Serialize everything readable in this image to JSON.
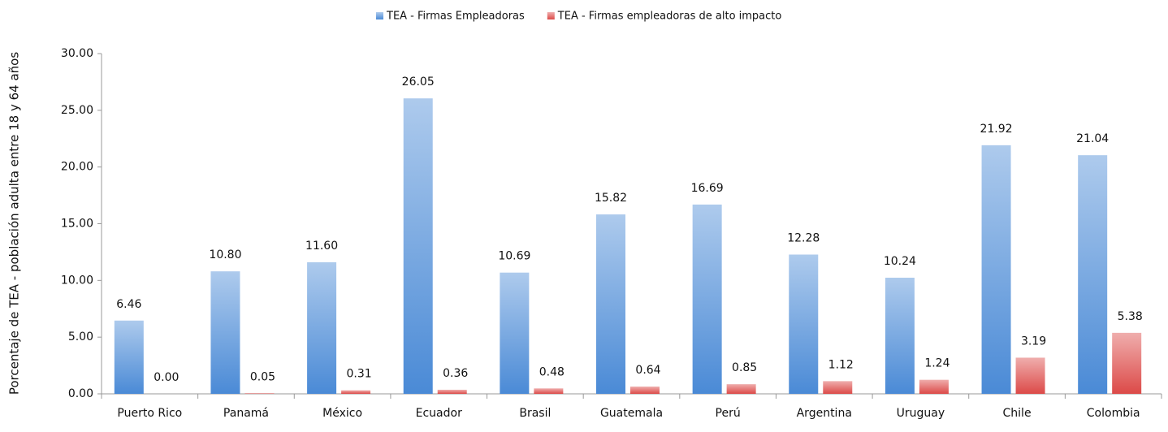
{
  "chart_data": {
    "type": "bar",
    "y_label": "Porcentaje de TEA - población adulta entre 18 y 64 años",
    "categories": [
      "Puerto Rico",
      "Panamá",
      "México",
      "Ecuador",
      "Brasil",
      "Guatemala",
      "Perú",
      "Argentina",
      "Uruguay",
      "Chile",
      "Colombia"
    ],
    "series": [
      {
        "name": "TEA - Firmas Empleadoras",
        "color": "#4a8ad6",
        "values": [
          6.46,
          10.8,
          11.6,
          26.05,
          10.69,
          15.82,
          16.69,
          12.28,
          10.24,
          21.92,
          21.04
        ],
        "value_labels": [
          "6.46",
          "10.80",
          "11.60",
          "26.05",
          "10.69",
          "15.82",
          "16.69",
          "12.28",
          "10.24",
          "21.92",
          "21.04"
        ]
      },
      {
        "name": "TEA - Firmas empleadoras de alto impacto",
        "color": "#dc4a48",
        "values": [
          0,
          0.05,
          0.31,
          0.36,
          0.48,
          0.64,
          0.85,
          1.12,
          1.24,
          3.19,
          5.38
        ],
        "value_labels": [
          "0.00",
          "0.05",
          "0.31",
          "0.36",
          "0.48",
          "0.64",
          "0.85",
          "1.12",
          "1.24",
          "3.19",
          "5.38"
        ]
      }
    ],
    "ylim": [
      0,
      30
    ],
    "yticks": [
      {
        "value": 0,
        "label": "0.00"
      },
      {
        "value": 5,
        "label": "5.00"
      },
      {
        "value": 10,
        "label": "10.00"
      },
      {
        "value": 15,
        "label": "15.00"
      },
      {
        "value": 20,
        "label": "20.00"
      },
      {
        "value": 25,
        "label": "25.00"
      },
      {
        "value": 30,
        "label": "30.00"
      }
    ],
    "grid": false,
    "legend": "top"
  }
}
